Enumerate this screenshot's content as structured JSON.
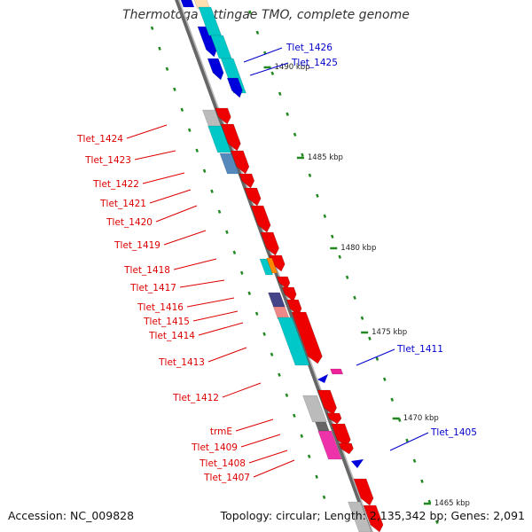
{
  "title": "Thermotoga lettingae TMO, complete genome",
  "accession": "Accession: NC_009828",
  "topology": "Topology: circular; Length: 2,135,342 bp; Genes: 2,091",
  "colors": {
    "red": "#ee0000",
    "blue": "#0000dd",
    "cyan": "#00c8c8",
    "grey": "#bbbbbb",
    "tick": "#228822",
    "label_red": "#dd0000",
    "label_blue": "#0000cc"
  },
  "kbp_markers": [
    "1490 kbp",
    "1485 kbp",
    "1480 kbp",
    "1475 kbp",
    "1470 kbp",
    "1465 kbp"
  ],
  "labels_right": [
    "Tlet_1426",
    "Tlet_1425",
    "Tlet_1411",
    "Tlet_1405"
  ],
  "labels_left": [
    "Tlet_1424",
    "Tlet_1423",
    "Tlet_1422",
    "Tlet_1421",
    "Tlet_1420",
    "Tlet_1419",
    "Tlet_1418",
    "Tlet_1417",
    "Tlet_1416",
    "Tlet_1415",
    "Tlet_1414",
    "Tlet_1413",
    "Tlet_1412",
    "trmE",
    "Tlet_1409",
    "Tlet_1408",
    "Tlet_1407"
  ]
}
